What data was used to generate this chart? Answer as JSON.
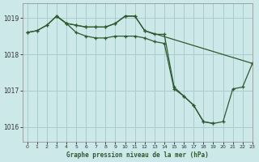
{
  "title": "Graphe pression niveau de la mer (hPa)",
  "background_color": "#cce8e8",
  "grid_color": "#aacccc",
  "line_color": "#2d5a2d",
  "xlim": [
    -0.5,
    23
  ],
  "ylim": [
    1015.6,
    1019.4
  ],
  "yticks": [
    1016,
    1017,
    1018,
    1019
  ],
  "xticks": [
    0,
    1,
    2,
    3,
    4,
    5,
    6,
    7,
    8,
    9,
    10,
    11,
    12,
    13,
    14,
    15,
    16,
    17,
    18,
    19,
    20,
    21,
    22,
    23
  ],
  "line1_x": [
    0,
    1,
    2,
    3,
    4,
    5,
    6,
    7,
    8,
    9,
    10,
    11,
    12,
    13,
    14,
    15,
    16,
    17,
    18,
    19
  ],
  "line1_y": [
    1018.6,
    1018.65,
    1018.8,
    1019.05,
    1018.85,
    1018.8,
    1018.75,
    1018.75,
    1018.75,
    1018.85,
    1019.05,
    1019.05,
    1018.65,
    1018.55,
    1018.55,
    1017.1,
    1016.85,
    1016.6,
    1016.15,
    1016.1
  ],
  "line2_x": [
    3,
    4,
    5,
    6,
    7,
    8,
    9,
    10,
    11,
    12,
    23
  ],
  "line2_y": [
    1019.05,
    1018.85,
    1018.8,
    1018.75,
    1018.75,
    1018.75,
    1018.85,
    1019.05,
    1019.05,
    1018.65,
    1017.75
  ],
  "line3_x": [
    0,
    1,
    2,
    3,
    4,
    5,
    6,
    7,
    8,
    9,
    10,
    11,
    12,
    13,
    14,
    15,
    16,
    17,
    18,
    19,
    20,
    21,
    22,
    23
  ],
  "line3_y": [
    1018.6,
    1018.65,
    1018.8,
    1019.05,
    1018.85,
    1018.6,
    1018.5,
    1018.45,
    1018.45,
    1018.5,
    1018.5,
    1018.5,
    1018.45,
    1018.35,
    1018.3,
    1017.05,
    1016.85,
    1016.6,
    1016.15,
    1016.1,
    1016.15,
    1017.05,
    1017.1,
    1017.75
  ]
}
